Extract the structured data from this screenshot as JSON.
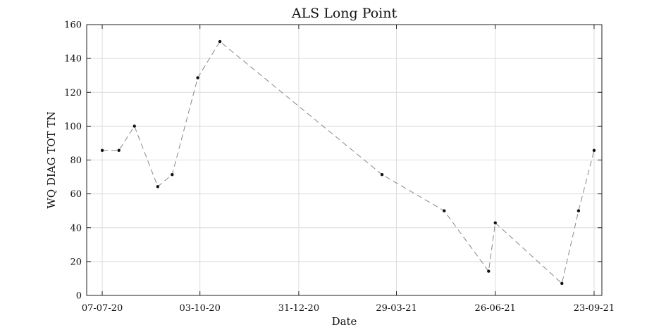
{
  "chart_data": {
    "type": "line",
    "title": "ALS Long Point",
    "xlabel": "Date",
    "ylabel": "WQ DIAG TOT TN",
    "x_axis_kind": "date",
    "xlim": [
      "2020-06-23",
      "2021-09-30"
    ],
    "ylim": [
      0,
      160
    ],
    "x_ticks": [
      "2020-07-07",
      "2020-10-03",
      "2020-12-31",
      "2021-03-29",
      "2021-06-26",
      "2021-09-23"
    ],
    "x_tick_labels": [
      "07-07-20",
      "03-10-20",
      "31-12-20",
      "29-03-21",
      "26-06-21",
      "23-09-21"
    ],
    "y_ticks": [
      0,
      20,
      40,
      60,
      80,
      100,
      120,
      140,
      160
    ],
    "y_tick_labels": [
      "0",
      "20",
      "40",
      "60",
      "80",
      "100",
      "120",
      "140",
      "160"
    ],
    "grid": true,
    "legend": false,
    "series": [
      {
        "color": "#888888",
        "marker_color": "#111111",
        "line_style": "dashed",
        "points": [
          {
            "x": "2020-07-07",
            "y": 85.7
          },
          {
            "x": "2020-07-22",
            "y": 85.7
          },
          {
            "x": "2020-08-05",
            "y": 100
          },
          {
            "x": "2020-08-26",
            "y": 64.3
          },
          {
            "x": "2020-09-08",
            "y": 71.4
          },
          {
            "x": "2020-10-01",
            "y": 128.6
          },
          {
            "x": "2020-10-21",
            "y": 150
          },
          {
            "x": "2021-03-16",
            "y": 71.4
          },
          {
            "x": "2021-05-11",
            "y": 50
          },
          {
            "x": "2021-06-20",
            "y": 14.3
          },
          {
            "x": "2021-06-26",
            "y": 42.9
          },
          {
            "x": "2021-08-25",
            "y": 7.1
          },
          {
            "x": "2021-09-09",
            "y": 50
          },
          {
            "x": "2021-09-23",
            "y": 85.7
          }
        ]
      }
    ]
  }
}
